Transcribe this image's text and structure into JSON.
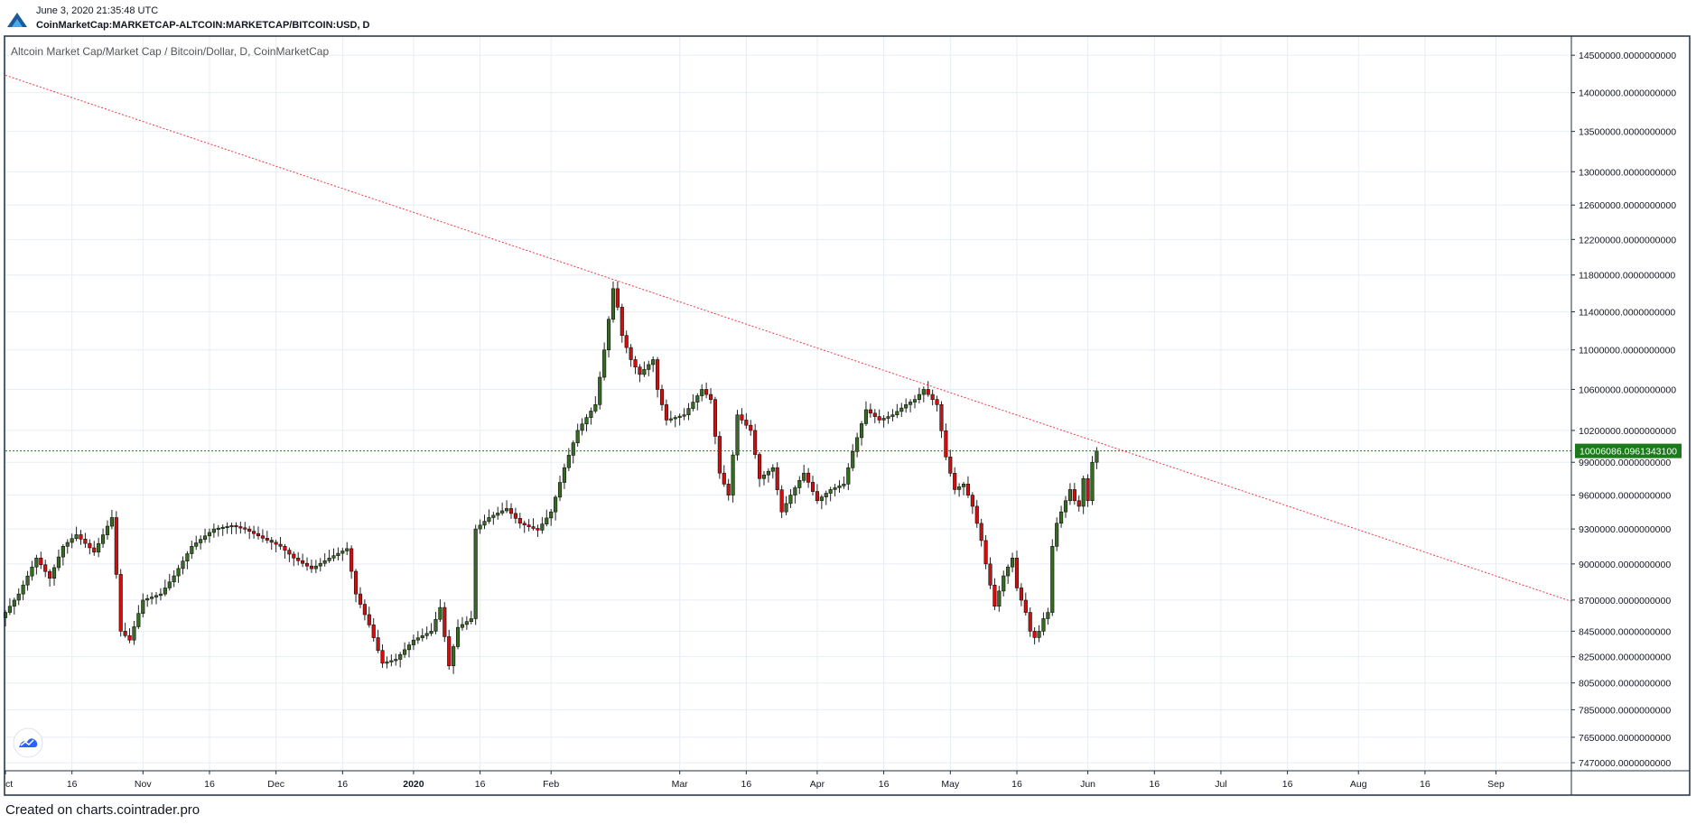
{
  "header": {
    "date": "June 3, 2020 21:35:48 UTC",
    "symbol": "CoinMarketCap:MARKETCAP-ALTCOIN:MARKETCAP/BITCOIN:USD, D"
  },
  "legend": {
    "text": "Altcoin Market Cap/Market Cap / Bitcoin/Dollar, D, CoinMarketCap"
  },
  "footer": {
    "text": "Created on charts.cointrader.pro"
  },
  "colors": {
    "up": "#376B23",
    "down": "#D30D0D",
    "trendline": "#F23645",
    "last_price_line": "#1B7B1B",
    "grid": "#E6EEF4",
    "border": "#1E2F3F"
  },
  "icons": {
    "brand": "cointrader-logo-icon",
    "watermark": "tradingview-cloud-icon"
  },
  "chart_data": {
    "type": "candlestick",
    "title": "Altcoin Market Cap/Market Cap / Bitcoin/Dollar, D, CoinMarketCap",
    "x_axis": {
      "type": "date",
      "range": [
        "2019-10-01",
        "2020-09-18"
      ],
      "ticks": [
        {
          "date": "2019-10-01",
          "label": "ct"
        },
        {
          "date": "2019-10-16",
          "label": "16"
        },
        {
          "date": "2019-11-01",
          "label": "Nov"
        },
        {
          "date": "2019-11-16",
          "label": "16"
        },
        {
          "date": "2019-12-01",
          "label": "Dec"
        },
        {
          "date": "2019-12-16",
          "label": "16"
        },
        {
          "date": "2020-01-01",
          "label": "2020"
        },
        {
          "date": "2020-01-16",
          "label": "16"
        },
        {
          "date": "2020-02-01",
          "label": "Feb"
        },
        {
          "date": "2020-03-01",
          "label": "Mar"
        },
        {
          "date": "2020-03-16",
          "label": "16"
        },
        {
          "date": "2020-04-01",
          "label": "Apr"
        },
        {
          "date": "2020-04-16",
          "label": "16"
        },
        {
          "date": "2020-05-01",
          "label": "May"
        },
        {
          "date": "2020-05-16",
          "label": "16"
        },
        {
          "date": "2020-06-01",
          "label": "Jun"
        },
        {
          "date": "2020-06-16",
          "label": "16"
        },
        {
          "date": "2020-07-01",
          "label": "Jul"
        },
        {
          "date": "2020-07-16",
          "label": "16"
        },
        {
          "date": "2020-08-01",
          "label": "Aug"
        },
        {
          "date": "2020-08-16",
          "label": "16"
        },
        {
          "date": "2020-09-01",
          "label": "Sep"
        }
      ]
    },
    "y_axis": {
      "scale": "log",
      "range": [
        7420000,
        14750000
      ],
      "ticks": [
        {
          "value": 14500000,
          "label": "14500000.0000000000"
        },
        {
          "value": 14000000,
          "label": "14000000.0000000000"
        },
        {
          "value": 13500000,
          "label": "13500000.0000000000"
        },
        {
          "value": 13000000,
          "label": "13000000.0000000000"
        },
        {
          "value": 12600000,
          "label": "12600000.0000000000"
        },
        {
          "value": 12200000,
          "label": "12200000.0000000000"
        },
        {
          "value": 11800000,
          "label": "11800000.0000000000"
        },
        {
          "value": 11400000,
          "label": "11400000.0000000000"
        },
        {
          "value": 11000000,
          "label": "11000000.0000000000"
        },
        {
          "value": 10600000,
          "label": "10600000.0000000000"
        },
        {
          "value": 10200000,
          "label": "10200000.0000000000"
        },
        {
          "value": 9900000,
          "label": "9900000.0000000000"
        },
        {
          "value": 9600000,
          "label": "9600000.0000000000"
        },
        {
          "value": 9300000,
          "label": "9300000.0000000000"
        },
        {
          "value": 9000000,
          "label": "9000000.0000000000"
        },
        {
          "value": 8700000,
          "label": "8700000.0000000000"
        },
        {
          "value": 8450000,
          "label": "8450000.0000000000"
        },
        {
          "value": 8250000,
          "label": "8250000.0000000000"
        },
        {
          "value": 8050000,
          "label": "8050000.0000000000"
        },
        {
          "value": 7850000,
          "label": "7850000.0000000000"
        },
        {
          "value": 7650000,
          "label": "7650000.0000000000"
        },
        {
          "value": 7470000,
          "label": "7470000.0000000000"
        }
      ]
    },
    "grid": true,
    "last_price": {
      "value": 10006086.0961343,
      "label": "10006086.0961343100"
    },
    "trendline": {
      "points": [
        [
          "2019-10-01",
          14230000
        ],
        [
          "2020-09-18",
          8690000
        ]
      ],
      "style": "dotted"
    },
    "close_anchors": [
      [
        "2019-10-01",
        8600000
      ],
      [
        "2019-10-04",
        8750000
      ],
      [
        "2019-10-08",
        9050000
      ],
      [
        "2019-10-11",
        8880000
      ],
      [
        "2019-10-14",
        9150000
      ],
      [
        "2019-10-17",
        9250000
      ],
      [
        "2019-10-21",
        9100000
      ],
      [
        "2019-10-25",
        9400000
      ],
      [
        "2019-10-27",
        8450000
      ],
      [
        "2019-10-29",
        8380000
      ],
      [
        "2019-11-01",
        8700000
      ],
      [
        "2019-11-05",
        8750000
      ],
      [
        "2019-11-08",
        8900000
      ],
      [
        "2019-11-12",
        9150000
      ],
      [
        "2019-11-17",
        9300000
      ],
      [
        "2019-11-21",
        9330000
      ],
      [
        "2019-11-24",
        9300000
      ],
      [
        "2019-11-28",
        9220000
      ],
      [
        "2019-12-02",
        9150000
      ],
      [
        "2019-12-05",
        9050000
      ],
      [
        "2019-12-09",
        8960000
      ],
      [
        "2019-12-13",
        9050000
      ],
      [
        "2019-12-17",
        9130000
      ],
      [
        "2019-12-19",
        8750000
      ],
      [
        "2019-12-22",
        8500000
      ],
      [
        "2019-12-25",
        8200000
      ],
      [
        "2019-12-28",
        8230000
      ],
      [
        "2020-01-01",
        8380000
      ],
      [
        "2020-01-05",
        8450000
      ],
      [
        "2020-01-07",
        8640000
      ],
      [
        "2020-01-09",
        8180000
      ],
      [
        "2020-01-11",
        8480000
      ],
      [
        "2020-01-14",
        8550000
      ],
      [
        "2020-01-15",
        9300000
      ],
      [
        "2020-01-18",
        9400000
      ],
      [
        "2020-01-22",
        9480000
      ],
      [
        "2020-01-25",
        9350000
      ],
      [
        "2020-01-29",
        9290000
      ],
      [
        "2020-02-01",
        9450000
      ],
      [
        "2020-02-04",
        9850000
      ],
      [
        "2020-02-07",
        10200000
      ],
      [
        "2020-02-11",
        10450000
      ],
      [
        "2020-02-13",
        11000000
      ],
      [
        "2020-02-15",
        11650000
      ],
      [
        "2020-02-16",
        11450000
      ],
      [
        "2020-02-17",
        11150000
      ],
      [
        "2020-02-19",
        10900000
      ],
      [
        "2020-02-21",
        10750000
      ],
      [
        "2020-02-24",
        10900000
      ],
      [
        "2020-02-25",
        10600000
      ],
      [
        "2020-02-27",
        10300000
      ],
      [
        "2020-03-02",
        10350000
      ],
      [
        "2020-03-06",
        10600000
      ],
      [
        "2020-03-08",
        10500000
      ],
      [
        "2020-03-10",
        9800000
      ],
      [
        "2020-03-12",
        9600000
      ],
      [
        "2020-03-14",
        10350000
      ],
      [
        "2020-03-17",
        10200000
      ],
      [
        "2020-03-19",
        9750000
      ],
      [
        "2020-03-22",
        9850000
      ],
      [
        "2020-03-24",
        9450000
      ],
      [
        "2020-03-26",
        9600000
      ],
      [
        "2020-03-29",
        9800000
      ],
      [
        "2020-04-01",
        9550000
      ],
      [
        "2020-04-04",
        9650000
      ],
      [
        "2020-04-07",
        9700000
      ],
      [
        "2020-04-09",
        10000000
      ],
      [
        "2020-04-12",
        10400000
      ],
      [
        "2020-04-15",
        10300000
      ],
      [
        "2020-04-18",
        10350000
      ],
      [
        "2020-04-21",
        10450000
      ],
      [
        "2020-04-23",
        10500000
      ],
      [
        "2020-04-25",
        10600000
      ],
      [
        "2020-04-28",
        10450000
      ],
      [
        "2020-04-30",
        9950000
      ],
      [
        "2020-05-02",
        9650000
      ],
      [
        "2020-05-04",
        9700000
      ],
      [
        "2020-05-06",
        9500000
      ],
      [
        "2020-05-08",
        9200000
      ],
      [
        "2020-05-09",
        9000000
      ],
      [
        "2020-05-11",
        8650000
      ],
      [
        "2020-05-13",
        8900000
      ],
      [
        "2020-05-15",
        9050000
      ],
      [
        "2020-05-16",
        8800000
      ],
      [
        "2020-05-18",
        8600000
      ],
      [
        "2020-05-19",
        8450000
      ],
      [
        "2020-05-20",
        8400000
      ],
      [
        "2020-05-21",
        8450000
      ],
      [
        "2020-05-22",
        8550000
      ],
      [
        "2020-05-23",
        8600000
      ],
      [
        "2020-05-24",
        9150000
      ],
      [
        "2020-05-25",
        9350000
      ],
      [
        "2020-05-26",
        9450000
      ],
      [
        "2020-05-27",
        9550000
      ],
      [
        "2020-05-28",
        9650000
      ],
      [
        "2020-05-29",
        9550000
      ],
      [
        "2020-05-30",
        9500000
      ],
      [
        "2020-05-31",
        9750000
      ],
      [
        "2020-06-01",
        9550000
      ],
      [
        "2020-06-02",
        9900000
      ],
      [
        "2020-06-03",
        10006086
      ]
    ]
  }
}
